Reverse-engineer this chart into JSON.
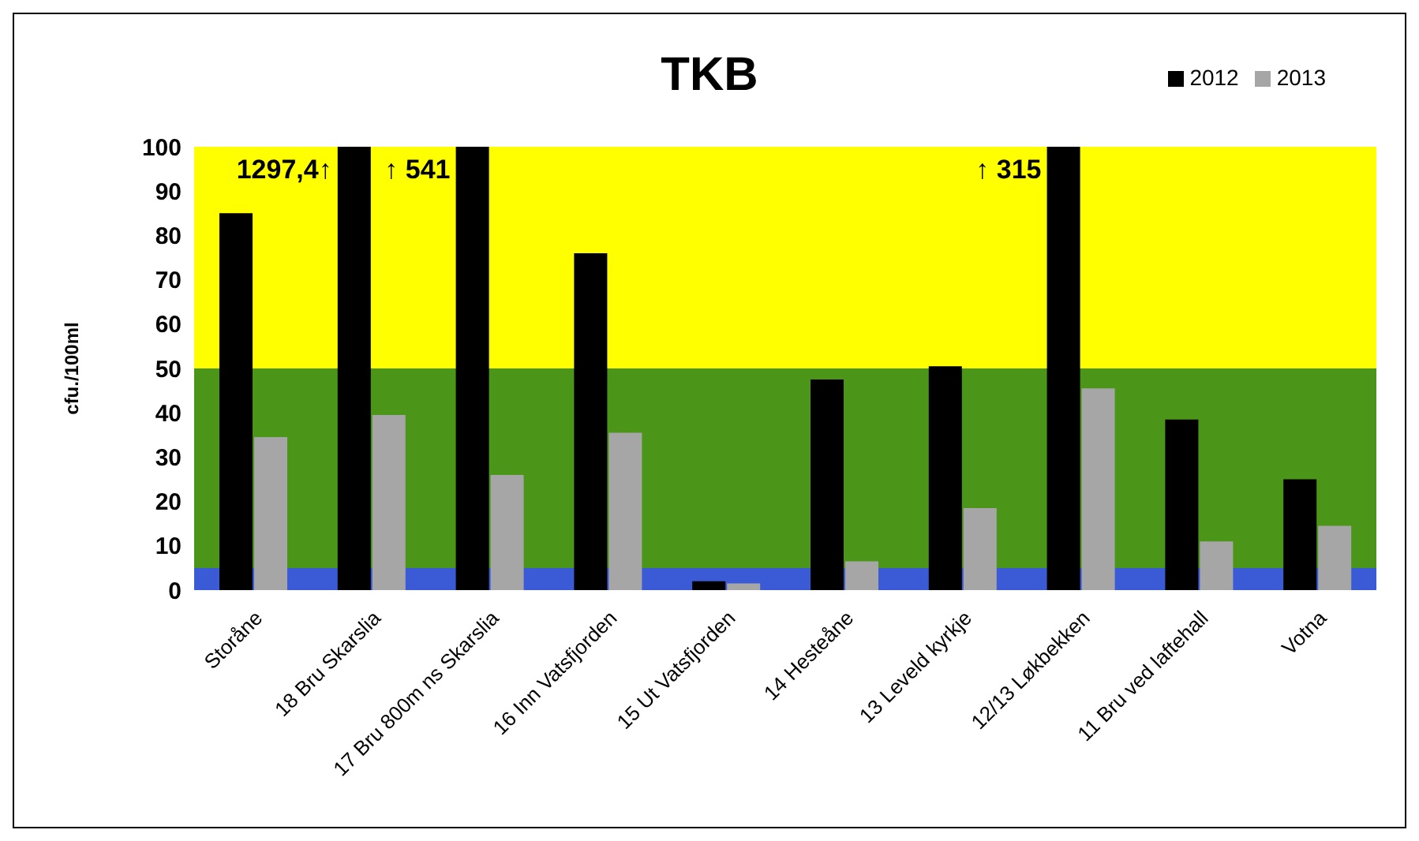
{
  "chart_data": {
    "type": "bar",
    "title": "TKB",
    "ylabel": "cfu./100ml",
    "categories": [
      "Storåne",
      "18 Bru Skarslia",
      "17 Bru 800m ns Skarslia",
      "16 Inn Vatsfjorden",
      "15 Ut Vatsfjorden",
      "14 Hesteåne",
      "13 Leveld kyrkje",
      "12/13  Løkbekken",
      "11 Bru ved laftehall",
      "Votna"
    ],
    "series": [
      {
        "name": "2012",
        "color": "#000000",
        "values": [
          85,
          100,
          100,
          76,
          2,
          47.5,
          50.5,
          100,
          38.5,
          25
        ]
      },
      {
        "name": "2013",
        "color": "#a6a6a6",
        "values": [
          34.5,
          39.5,
          26,
          35.5,
          1.5,
          6.5,
          18.5,
          45.5,
          11,
          14.5
        ]
      }
    ],
    "ylim": [
      0,
      100
    ],
    "yticks": [
      0,
      10,
      20,
      30,
      40,
      50,
      60,
      70,
      80,
      90,
      100
    ],
    "grid": false,
    "legend": "top right",
    "bands": [
      {
        "axis": "y",
        "from": 0,
        "to": 5,
        "color": "#3b5bd6"
      },
      {
        "axis": "y",
        "from": 5,
        "to": 50,
        "color": "#4b9518"
      },
      {
        "axis": "y",
        "from": 50,
        "to": 100,
        "color": "#ffff00"
      }
    ],
    "annotations": [
      {
        "text": "1297,4↑",
        "x": "18 Bru Skarslia",
        "y": 100
      },
      {
        "text": "↑ 541",
        "x": "17 Bru 800m ns Skarslia",
        "y": 100
      },
      {
        "text": "↑ 315",
        "x": "12/13  Løkbekken",
        "y": 100
      }
    ]
  }
}
